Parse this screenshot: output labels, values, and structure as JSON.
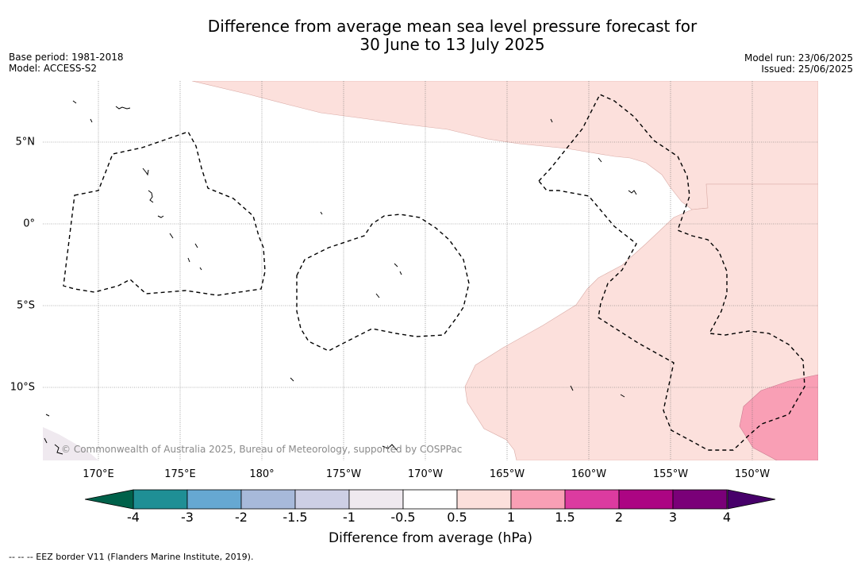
{
  "title_line1": "Difference from average mean sea level pressure forecast for",
  "title_line2": "30 June to 13 July 2025",
  "meta_left": {
    "base_period": "Base period: 1981-2018",
    "model": "Model: ACCESS-S2"
  },
  "meta_right": {
    "model_run": "Model run: 23/06/2025",
    "issued": "Issued: 25/06/2025"
  },
  "map": {
    "longitude_labels": [
      "170°E",
      "175°E",
      "180°",
      "175°W",
      "170°W",
      "165°W",
      "160°W",
      "155°W",
      "150°W"
    ],
    "latitude_labels": [
      "5°N",
      "0°",
      "5°S",
      "10°S"
    ],
    "copyright": "© Commonwealth of Australia 2025, Bureau of Meteorology, supported by COSPPac"
  },
  "colorbar": {
    "title": "Difference from average (hPa)",
    "tick_labels": [
      "-4",
      "-3",
      "-2",
      "-1.5",
      "-1",
      "-0.5",
      "0.5",
      "1",
      "1.5",
      "2",
      "3",
      "4"
    ],
    "under_color": "#00614a",
    "bins": [
      {
        "from": -4,
        "to": -3,
        "color": "#1f8f95"
      },
      {
        "from": -3,
        "to": -2,
        "color": "#66a8d2"
      },
      {
        "from": -2,
        "to": -1.5,
        "color": "#a7b9da"
      },
      {
        "from": -1.5,
        "to": -1,
        "color": "#cdcfe5"
      },
      {
        "from": -1,
        "to": -0.5,
        "color": "#efe9ef"
      },
      {
        "from": -0.5,
        "to": 0.5,
        "color": "#ffffff"
      },
      {
        "from": 0.5,
        "to": 1,
        "color": "#fce0dc"
      },
      {
        "from": 1,
        "to": 1.5,
        "color": "#f99fb5"
      },
      {
        "from": 1.5,
        "to": 2,
        "color": "#dc3ba0"
      },
      {
        "from": 2,
        "to": 3,
        "color": "#ac0583"
      },
      {
        "from": 3,
        "to": 4,
        "color": "#7a0078"
      }
    ],
    "over_color": "#47006a"
  },
  "footnote": "--  --  -- EEZ border V11 (Flanders Marine Institute, 2019)."
}
